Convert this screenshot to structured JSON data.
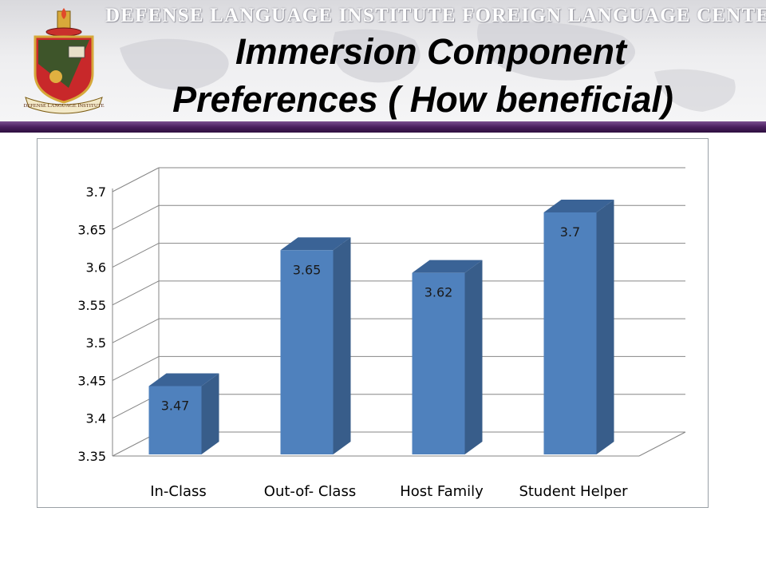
{
  "header": {
    "org_name": "DEFENSE LANGUAGE INSTITUTE FOREIGN LANGUAGE CENTER",
    "title_line1": "Immersion Component",
    "title_line2": "Preferences ( How beneficial)",
    "crest_text": "DEFENSE LANGUAGE INSTITUTE"
  },
  "colors": {
    "bar_front": "#4f81bd",
    "bar_side": "#385d8a",
    "bar_top": "#3a6396",
    "band": "#4a1f5e",
    "grid": "#868686"
  },
  "chart_data": {
    "type": "bar",
    "title": "",
    "xlabel": "",
    "ylabel": "",
    "categories": [
      "In-Class",
      "Out-of- Class",
      "Host Family",
      "Student Helper"
    ],
    "values": [
      3.47,
      3.65,
      3.62,
      3.7
    ],
    "data_labels": [
      "3.47",
      "3.65",
      "3.62",
      "3.7"
    ],
    "ylim": [
      3.35,
      3.7
    ],
    "yticks": [
      3.35,
      3.4,
      3.45,
      3.5,
      3.55,
      3.6,
      3.65,
      3.7
    ],
    "ytick_labels": [
      "3.35",
      "3.4",
      "3.45",
      "3.5",
      "3.55",
      "3.6",
      "3.65",
      "3.7"
    ],
    "grid": true,
    "legend": "none",
    "style": "3d"
  }
}
